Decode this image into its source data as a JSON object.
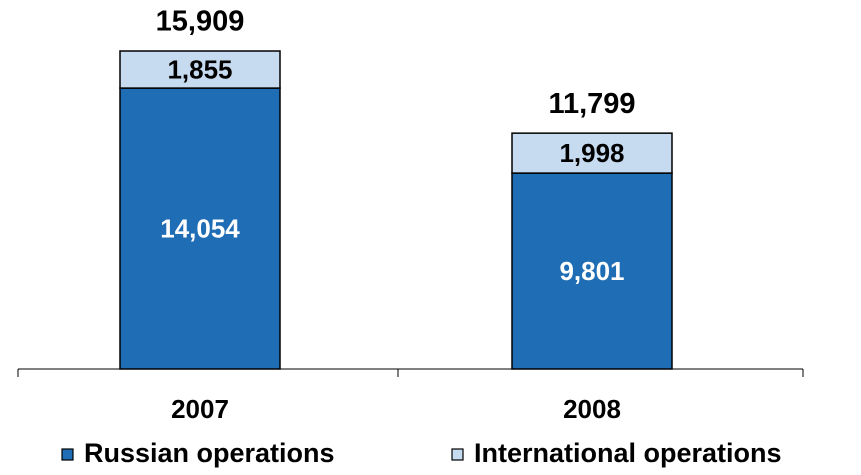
{
  "chart_data": {
    "type": "stacked_bar",
    "categories": [
      "2007",
      "2008"
    ],
    "series": [
      {
        "name": "Russian operations",
        "color": "#1f6db5",
        "values": [
          14054,
          9801
        ],
        "value_labels": [
          "14,054",
          "9,801"
        ]
      },
      {
        "name": "International operations",
        "color": "#c6daf0",
        "values": [
          1855,
          1998
        ],
        "value_labels": [
          "1,855",
          "1,998"
        ]
      }
    ],
    "totals": [
      15909,
      11799
    ],
    "total_labels": [
      "15,909",
      "11,799"
    ],
    "legend": "bottom"
  }
}
